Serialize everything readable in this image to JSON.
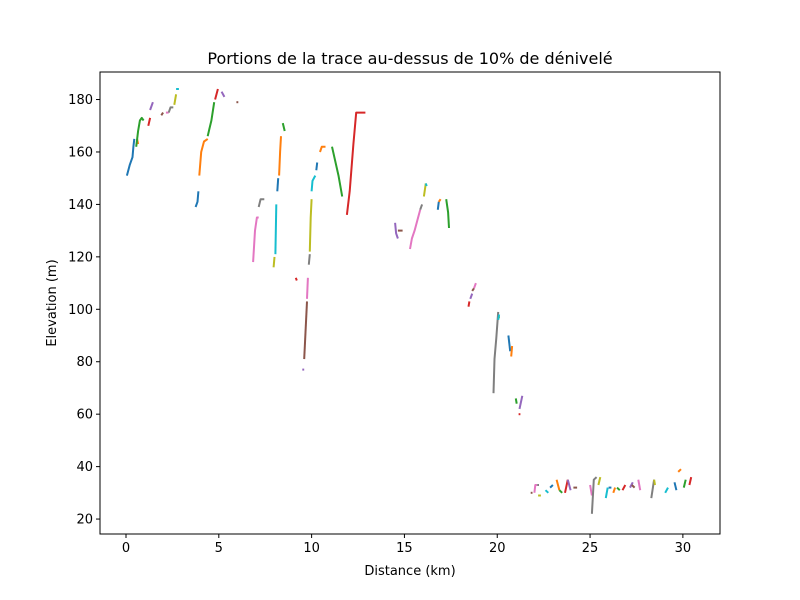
{
  "chart_data": {
    "type": "line",
    "title": "Portions de la trace au-dessus de 10% de dénivelé",
    "xlabel": "Distance (km)",
    "ylabel": "Elevation (m)",
    "xlim": [
      -1.4,
      32.0
    ],
    "ylim": [
      14.3,
      190.5
    ],
    "x_ticks": [
      0,
      5,
      10,
      15,
      20,
      25,
      30
    ],
    "y_ticks": [
      20,
      40,
      60,
      80,
      100,
      120,
      140,
      160,
      180
    ],
    "grid": false,
    "legend": "none",
    "palette": [
      "#1f77b4",
      "#ff7f0e",
      "#2ca02c",
      "#d62728",
      "#9467bd",
      "#8c564b",
      "#e377c2",
      "#7f7f7f",
      "#bcbd22",
      "#17becf"
    ],
    "series": [
      {
        "x": [
          0.05,
          0.2,
          0.35,
          0.4,
          0.45
        ],
        "y": [
          151,
          155,
          158,
          162,
          165
        ]
      },
      {
        "x": [
          0.6,
          0.65
        ],
        "y": [
          165,
          163
        ]
      },
      {
        "x": [
          0.55,
          0.65,
          0.75,
          0.85,
          0.95
        ],
        "y": [
          162,
          168,
          172,
          173,
          172
        ]
      },
      {
        "x": [
          1.2,
          1.3
        ],
        "y": [
          170,
          173
        ]
      },
      {
        "x": [
          1.3,
          1.45
        ],
        "y": [
          176,
          179
        ]
      },
      {
        "x": [
          1.9,
          2.0
        ],
        "y": [
          174,
          175
        ]
      },
      {
        "x": [
          2.15,
          2.3
        ],
        "y": [
          175,
          175
        ]
      },
      {
        "x": [
          2.3,
          2.4,
          2.55
        ],
        "y": [
          175,
          177,
          177
        ]
      },
      {
        "x": [
          2.6,
          2.7
        ],
        "y": [
          178,
          182
        ]
      },
      {
        "x": [
          2.7,
          2.85
        ],
        "y": [
          184,
          184
        ]
      },
      {
        "x": [
          3.75,
          3.85,
          3.9
        ],
        "y": [
          139,
          141,
          145
        ]
      },
      {
        "x": [
          3.95,
          4.05,
          4.2,
          4.4
        ],
        "y": [
          151,
          160,
          164,
          165
        ]
      },
      {
        "x": [
          4.4,
          4.5,
          4.6,
          4.75
        ],
        "y": [
          166,
          169,
          172,
          179
        ]
      },
      {
        "x": [
          4.8,
          4.95
        ],
        "y": [
          180,
          184
        ]
      },
      {
        "x": [
          5.15,
          5.3
        ],
        "y": [
          183,
          181
        ]
      },
      {
        "x": [
          5.95,
          6.05
        ],
        "y": [
          179,
          179
        ]
      },
      {
        "x": [
          6.85,
          6.95,
          7.05,
          7.15
        ],
        "y": [
          118,
          130,
          135,
          135
        ]
      },
      {
        "x": [
          7.15,
          7.25,
          7.45
        ],
        "y": [
          139,
          142,
          142
        ]
      },
      {
        "x": [
          7.95,
          8.0
        ],
        "y": [
          116,
          120
        ]
      },
      {
        "x": [
          8.05,
          8.1
        ],
        "y": [
          121,
          140
        ]
      },
      {
        "x": [
          8.15,
          8.2
        ],
        "y": [
          145,
          150
        ]
      },
      {
        "x": [
          8.25,
          8.3,
          8.35
        ],
        "y": [
          151,
          160,
          166
        ]
      },
      {
        "x": [
          8.45,
          8.55
        ],
        "y": [
          171,
          168
        ]
      },
      {
        "x": [
          9.15,
          9.2
        ],
        "y": [
          112,
          111
        ]
      },
      {
        "x": [
          9.5,
          9.6
        ],
        "y": [
          77,
          77
        ]
      },
      {
        "x": [
          9.6,
          9.75
        ],
        "y": [
          81,
          103
        ]
      },
      {
        "x": [
          9.75,
          9.8
        ],
        "y": [
          104,
          112
        ]
      },
      {
        "x": [
          9.85,
          9.9
        ],
        "y": [
          117,
          121
        ]
      },
      {
        "x": [
          9.9,
          9.95,
          10.0
        ],
        "y": [
          122,
          135,
          142
        ]
      },
      {
        "x": [
          10.0,
          10.05,
          10.2
        ],
        "y": [
          145,
          149,
          151
        ]
      },
      {
        "x": [
          10.25,
          10.3
        ],
        "y": [
          153,
          156
        ]
      },
      {
        "x": [
          10.45,
          10.55,
          10.75
        ],
        "y": [
          160,
          162,
          162
        ]
      },
      {
        "x": [
          11.1,
          11.45,
          11.65
        ],
        "y": [
          162,
          151,
          143
        ]
      },
      {
        "x": [
          11.9,
          12.05,
          12.25,
          12.4,
          12.5,
          12.9
        ],
        "y": [
          136,
          145,
          163,
          175,
          175,
          175
        ]
      },
      {
        "x": [
          14.5,
          14.55,
          14.65
        ],
        "y": [
          133,
          129,
          127
        ]
      },
      {
        "x": [
          14.65,
          14.9
        ],
        "y": [
          130,
          130
        ]
      },
      {
        "x": [
          15.3,
          15.4,
          15.55,
          15.7,
          15.85
        ],
        "y": [
          123,
          127,
          130,
          134,
          138
        ]
      },
      {
        "x": [
          15.85,
          15.95
        ],
        "y": [
          138,
          140
        ]
      },
      {
        "x": [
          16.05,
          16.15
        ],
        "y": [
          143,
          148
        ]
      },
      {
        "x": [
          16.15,
          16.2
        ],
        "y": [
          148,
          147
        ]
      },
      {
        "x": [
          16.8,
          16.85
        ],
        "y": [
          138,
          141
        ]
      },
      {
        "x": [
          16.85,
          16.95
        ],
        "y": [
          141,
          142
        ]
      },
      {
        "x": [
          17.25,
          17.35,
          17.4
        ],
        "y": [
          142,
          137,
          131
        ]
      },
      {
        "x": [
          18.45,
          18.5
        ],
        "y": [
          101,
          103
        ]
      },
      {
        "x": [
          18.55,
          18.65
        ],
        "y": [
          104,
          106
        ]
      },
      {
        "x": [
          18.65,
          18.75
        ],
        "y": [
          107,
          108
        ]
      },
      {
        "x": [
          18.75,
          18.85
        ],
        "y": [
          108,
          110
        ]
      },
      {
        "x": [
          19.8,
          19.85,
          19.95,
          20.05
        ],
        "y": [
          68,
          81,
          89,
          99
        ]
      },
      {
        "x": [
          20.05,
          20.15
        ],
        "y": [
          97,
          97
        ]
      },
      {
        "x": [
          20.05,
          20.1
        ],
        "y": [
          96,
          98
        ]
      },
      {
        "x": [
          20.6,
          20.7
        ],
        "y": [
          90,
          84
        ]
      },
      {
        "x": [
          20.75,
          20.8
        ],
        "y": [
          82,
          86
        ]
      },
      {
        "x": [
          21.0,
          21.05
        ],
        "y": [
          66,
          64
        ]
      },
      {
        "x": [
          21.15,
          21.25
        ],
        "y": [
          60,
          60
        ]
      },
      {
        "x": [
          21.2,
          21.35
        ],
        "y": [
          62,
          67
        ]
      },
      {
        "x": [
          21.8,
          21.9
        ],
        "y": [
          30,
          30
        ]
      },
      {
        "x": [
          22.0,
          22.05,
          22.15
        ],
        "y": [
          30,
          33,
          33
        ]
      },
      {
        "x": [
          22.15,
          22.25
        ],
        "y": [
          33,
          33
        ]
      },
      {
        "x": [
          22.2,
          22.35
        ],
        "y": [
          29,
          29
        ]
      },
      {
        "x": [
          22.6,
          22.75
        ],
        "y": [
          31,
          30
        ]
      },
      {
        "x": [
          22.85,
          23.0
        ],
        "y": [
          32,
          33
        ]
      },
      {
        "x": [
          23.2,
          23.35
        ],
        "y": [
          35,
          31
        ]
      },
      {
        "x": [
          23.35,
          23.5
        ],
        "y": [
          31,
          30
        ]
      },
      {
        "x": [
          23.65,
          23.8
        ],
        "y": [
          30,
          35
        ]
      },
      {
        "x": [
          23.8,
          23.95
        ],
        "y": [
          35,
          31
        ]
      },
      {
        "x": [
          24.1,
          24.3
        ],
        "y": [
          32,
          32
        ]
      },
      {
        "x": [
          25.0,
          25.1
        ],
        "y": [
          33,
          29
        ]
      },
      {
        "x": [
          25.1,
          25.2,
          25.35
        ],
        "y": [
          22,
          35,
          36
        ]
      },
      {
        "x": [
          25.45,
          25.55
        ],
        "y": [
          33,
          36
        ]
      },
      {
        "x": [
          25.85,
          25.95
        ],
        "y": [
          28,
          32
        ]
      },
      {
        "x": [
          26.0,
          26.15
        ],
        "y": [
          32,
          32
        ]
      },
      {
        "x": [
          26.25,
          26.35
        ],
        "y": [
          30,
          32
        ]
      },
      {
        "x": [
          26.45,
          26.6
        ],
        "y": [
          32,
          31
        ]
      },
      {
        "x": [
          26.75,
          26.9
        ],
        "y": [
          31,
          33
        ]
      },
      {
        "x": [
          27.15,
          27.3
        ],
        "y": [
          32,
          34
        ]
      },
      {
        "x": [
          27.25,
          27.4
        ],
        "y": [
          33,
          32
        ]
      },
      {
        "x": [
          27.6,
          27.7
        ],
        "y": [
          35,
          31
        ]
      },
      {
        "x": [
          28.3,
          28.45
        ],
        "y": [
          28,
          35
        ]
      },
      {
        "x": [
          28.45,
          28.5
        ],
        "y": [
          35,
          33
        ]
      },
      {
        "x": [
          29.05,
          29.2
        ],
        "y": [
          30,
          32
        ]
      },
      {
        "x": [
          29.55,
          29.65
        ],
        "y": [
          34,
          31
        ]
      },
      {
        "x": [
          29.75,
          29.9
        ],
        "y": [
          38,
          39
        ]
      },
      {
        "x": [
          30.05,
          30.15
        ],
        "y": [
          32,
          35
        ]
      },
      {
        "x": [
          30.35,
          30.45
        ],
        "y": [
          33,
          36
        ]
      }
    ]
  }
}
